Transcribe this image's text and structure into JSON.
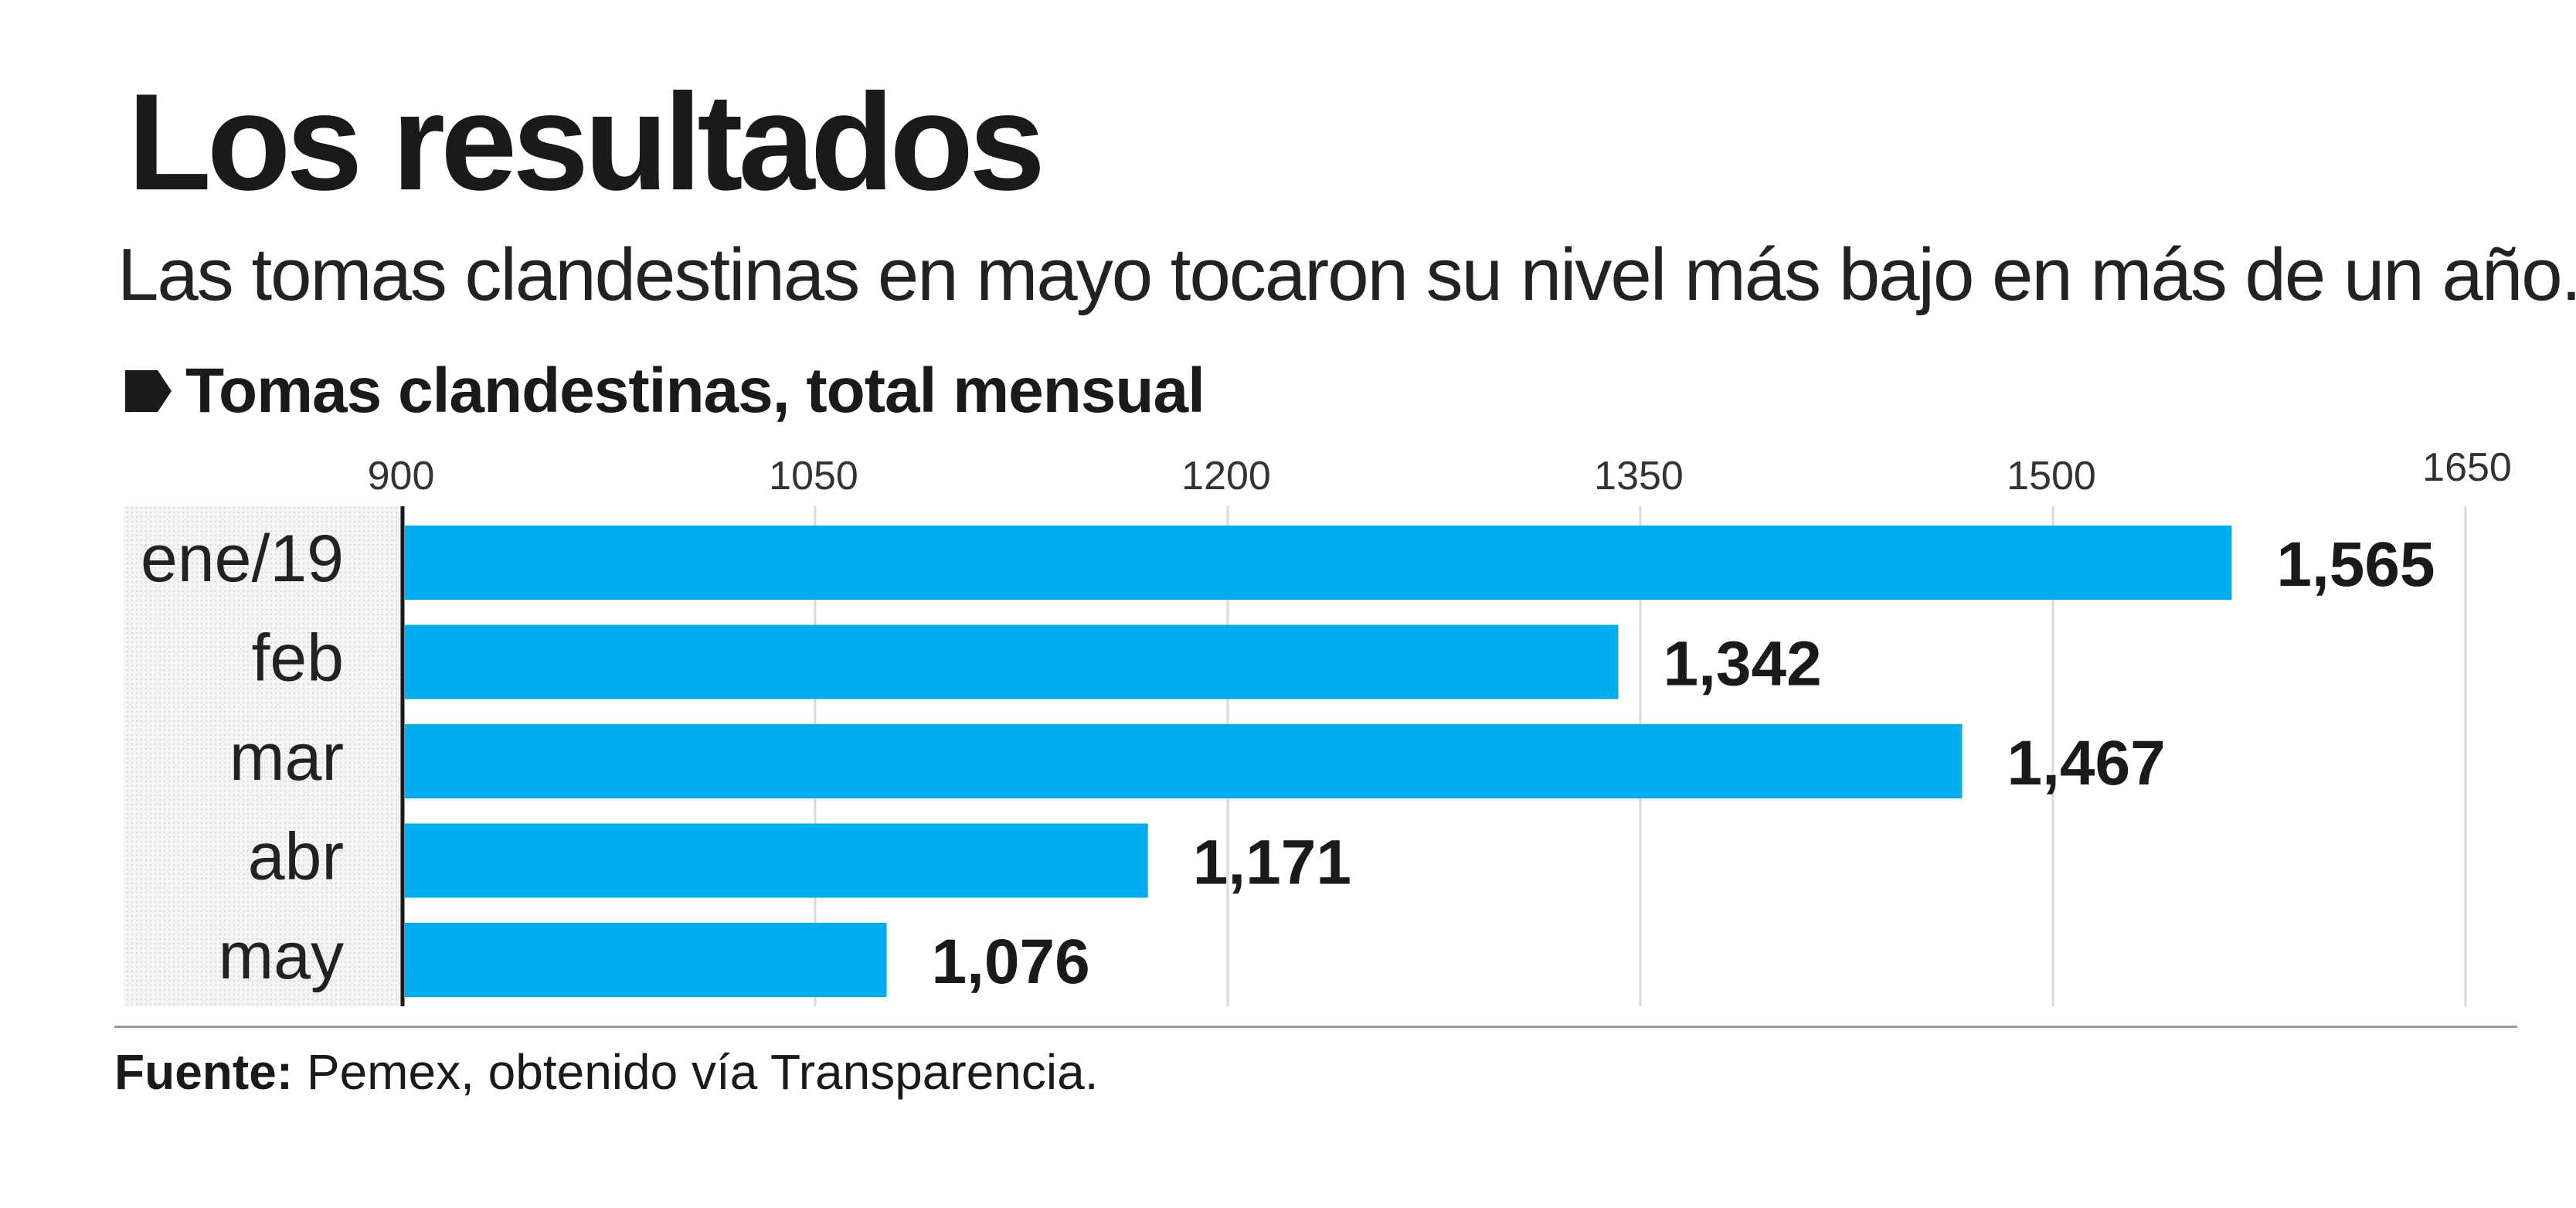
{
  "title": "Los resultados",
  "subtitle": "Las tomas clandestinas en mayo tocaron su nivel más bajo en más de un año.",
  "chart_heading": "Tomas clandestinas, total mensual",
  "source_label": "Fuente:",
  "source_text": "Pemex, obtenido vía Transparencia.",
  "colors": {
    "bar": "#00AEEF",
    "grid": "#d9d9d9",
    "text": "#1a1a1a"
  },
  "chart_data": {
    "type": "bar",
    "orientation": "horizontal",
    "title": "Tomas clandestinas, total mensual",
    "categories": [
      "ene/19",
      "feb",
      "mar",
      "abr",
      "may"
    ],
    "values": [
      1565,
      1342,
      1467,
      1171,
      1076
    ],
    "value_labels": [
      "1,565",
      "1,342",
      "1,467",
      "1,171",
      "1,076"
    ],
    "xlim": [
      900,
      1650
    ],
    "ticks": [
      900,
      1050,
      1200,
      1350,
      1500,
      1650
    ],
    "grid": true,
    "legend": "none"
  }
}
